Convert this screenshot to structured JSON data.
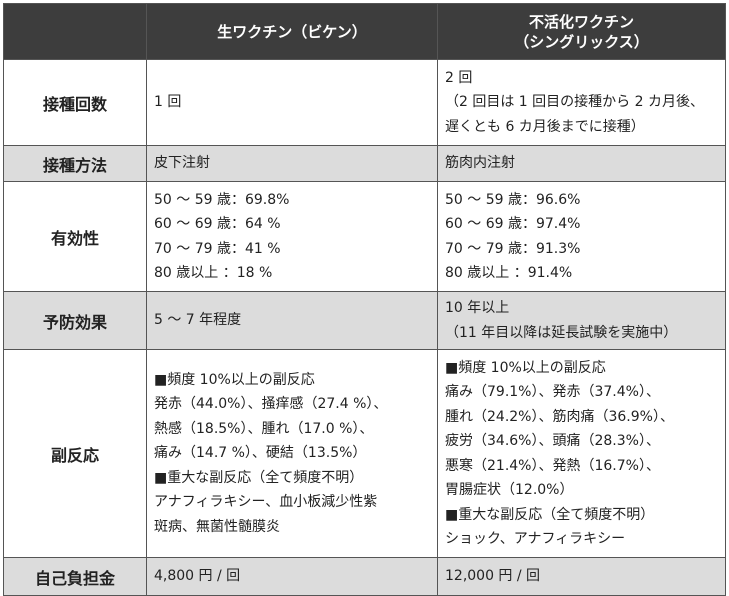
{
  "header": {
    "col1": "生ワクチン（ビケン）",
    "col2_line1": "不活化ワクチン",
    "col2_line2": "（シングリックス）"
  },
  "rows": [
    {
      "label": "接種回数",
      "live": [
        "1 回"
      ],
      "inactivated": [
        "2 回",
        "（2 回目は 1 回目の接種から 2 カ月後、",
        "遅くとも 6 カ月後までに接種）"
      ]
    },
    {
      "label": "接種方法",
      "live": [
        "皮下注射"
      ],
      "inactivated": [
        "筋肉内注射"
      ]
    },
    {
      "label": "有効性",
      "live": [
        "50 ～ 59 歳：69.8%",
        "60 ～ 69 歳：64 %",
        "70 ～ 79 歳：41 %",
        "80 歳以上 ：18 %"
      ],
      "inactivated": [
        "50 ～ 59 歳：96.6%",
        "60 ～ 69 歳：97.4%",
        "70 ～ 79 歳：91.3%",
        "80 歳以上 ：91.4%"
      ]
    },
    {
      "label": "予防効果",
      "live": [
        "5 ～ 7 年程度"
      ],
      "inactivated": [
        "10 年以上",
        "（11 年目以降は延長試験を実施中）"
      ]
    },
    {
      "label": "副反応",
      "live": [
        "■頻度 10%以上の副反応",
        "発赤（44.0%）、掻痒感（27.4 %）、",
        "熱感（18.5%）、腫れ（17.0 %）、",
        "痛み（14.7 %）、硬結（13.5%）",
        "■重大な副反応（全て頻度不明）",
        "アナフィラキシー、血小板減少性紫",
        "斑病、無菌性髄膜炎"
      ],
      "inactivated": [
        "■頻度 10%以上の副反応",
        "痛み（79.1%）、発赤（37.4%）、",
        "腫れ（24.2%）、筋肉痛（36.9%）、",
        "疲労（34.6%）、頭痛（28.3%）、",
        "悪寒（21.4%）、発熱（16.7%）、",
        "胃腸症状（12.0%）",
        "■重大な副反応（全て頻度不明）",
        "ショック、アナフィラキシー"
      ]
    },
    {
      "label": "自己負担金",
      "live": [
        "4,800 円 / 回"
      ],
      "inactivated": [
        "12,000 円 / 回"
      ]
    }
  ]
}
